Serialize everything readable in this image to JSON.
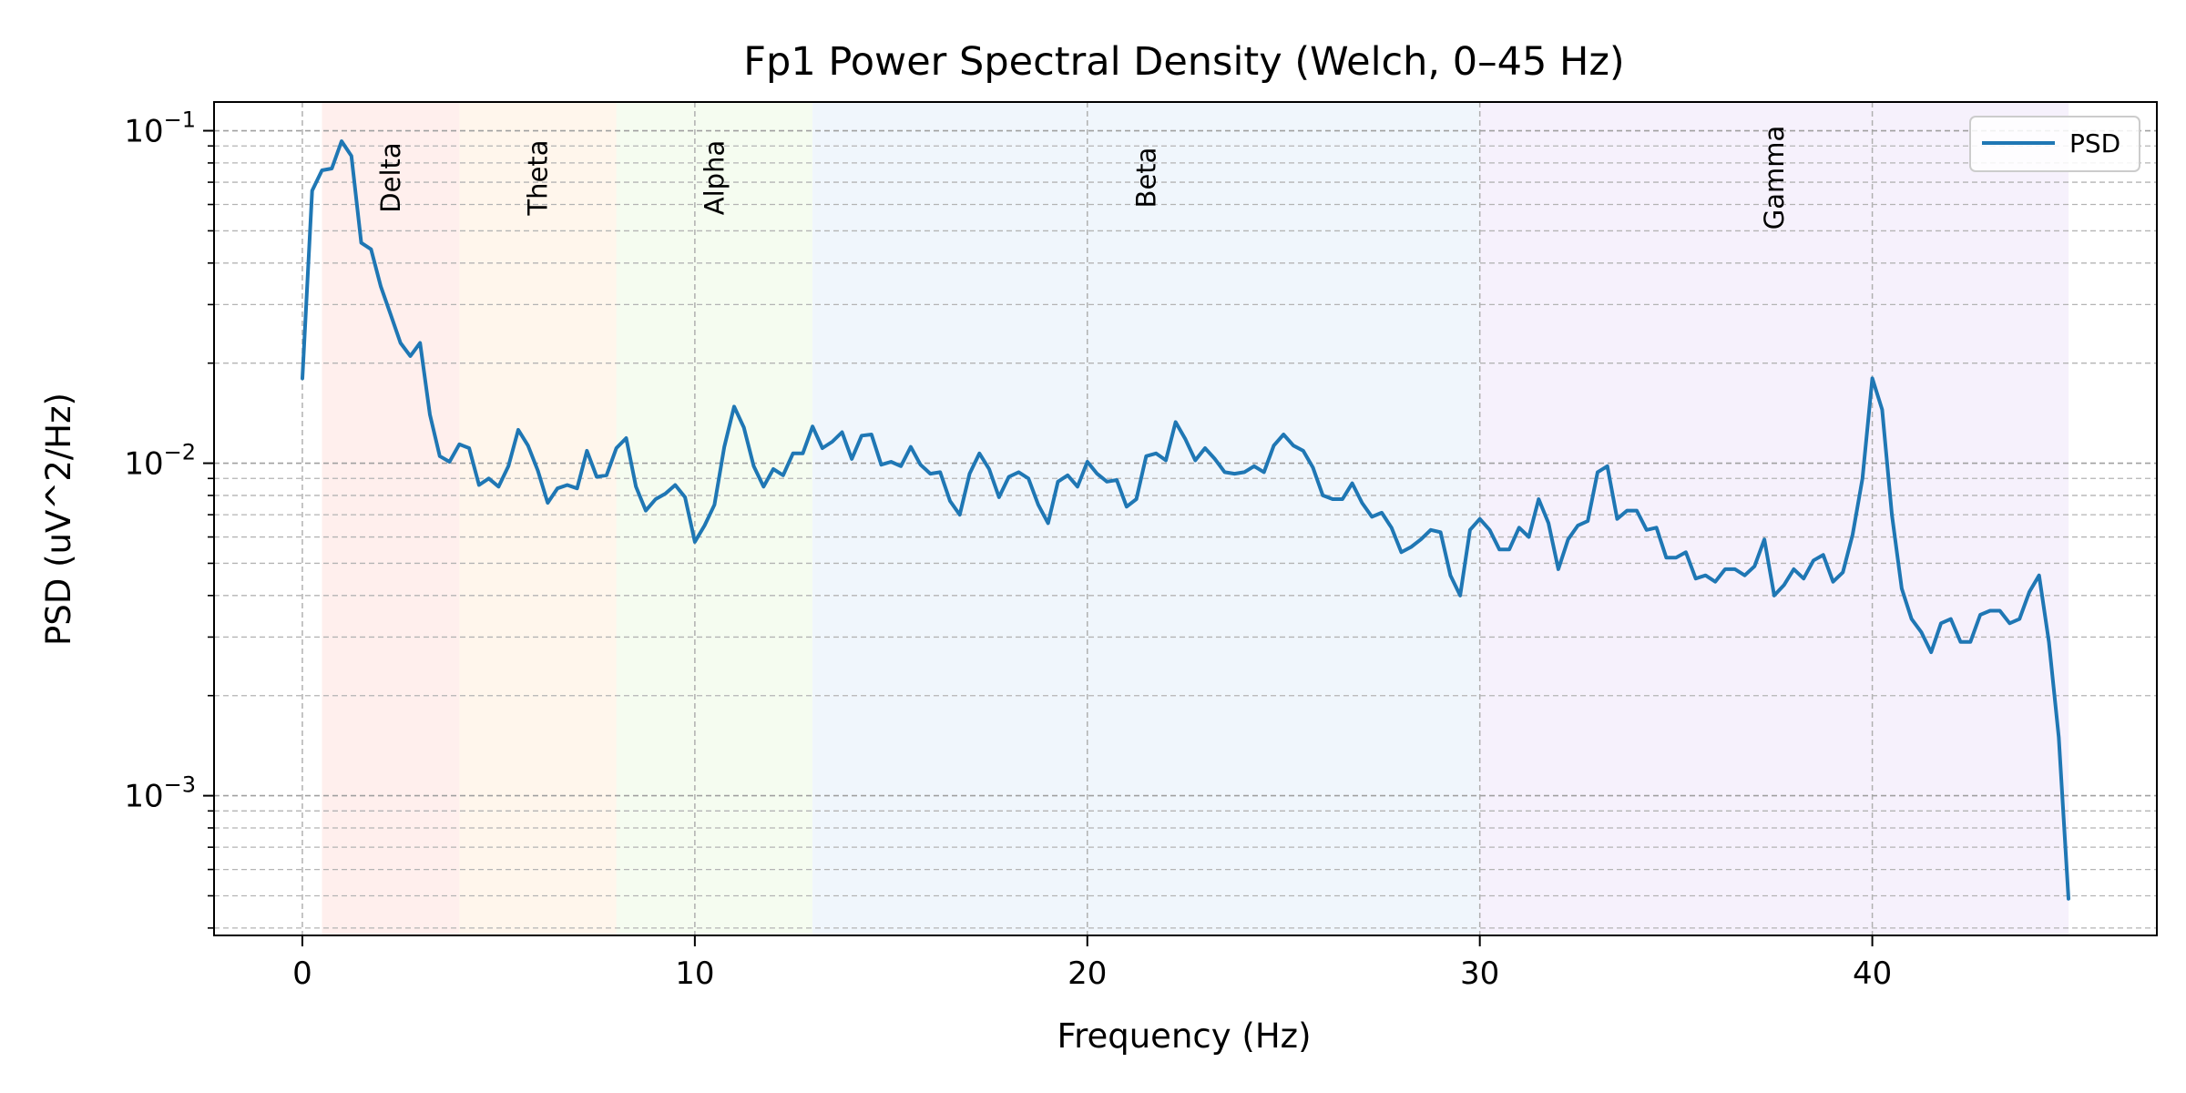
{
  "chart_data": {
    "type": "line",
    "title": "Fp1 Power Spectral Density (Welch, 0–45 Hz)",
    "xlabel": "Frequency (Hz)",
    "ylabel": "PSD (uV^2/Hz)",
    "xlim": [
      -2.25,
      47.25
    ],
    "ylim": [
      0.00038,
      0.122
    ],
    "y_scale": "log",
    "grid": "both-dashed",
    "legend_position": "upper right",
    "x_ticks": [
      {
        "value": 0,
        "label": "0"
      },
      {
        "value": 10,
        "label": "10"
      },
      {
        "value": 20,
        "label": "20"
      },
      {
        "value": 30,
        "label": "30"
      },
      {
        "value": 40,
        "label": "40"
      }
    ],
    "y_ticks": [
      {
        "value": 0.001,
        "base": "10",
        "exp": "−3"
      },
      {
        "value": 0.01,
        "base": "10",
        "exp": "−2"
      },
      {
        "value": 0.1,
        "base": "10",
        "exp": "−1"
      }
    ],
    "bands": [
      {
        "name": "Delta",
        "from": 0.5,
        "to": 4,
        "color": "#ffe4e1"
      },
      {
        "name": "Theta",
        "from": 4,
        "to": 8,
        "color": "#fff0e0"
      },
      {
        "name": "Alpha",
        "from": 8,
        "to": 13,
        "color": "#eefae6"
      },
      {
        "name": "Beta",
        "from": 13,
        "to": 30,
        "color": "#e6f0fa"
      },
      {
        "name": "Gamma",
        "from": 30,
        "to": 45,
        "color": "#f0e8fa"
      }
    ],
    "series": [
      {
        "name": "PSD",
        "color": "#1f77b4",
        "x": [
          0.0,
          0.25,
          0.5,
          0.75,
          1.0,
          1.25,
          1.5,
          1.75,
          2.0,
          2.25,
          2.5,
          2.75,
          3.0,
          3.25,
          3.5,
          3.75,
          4.0,
          4.25,
          4.5,
          4.75,
          5.0,
          5.25,
          5.5,
          5.75,
          6.0,
          6.25,
          6.5,
          6.75,
          7.0,
          7.25,
          7.5,
          7.75,
          8.0,
          8.25,
          8.5,
          8.75,
          9.0,
          9.25,
          9.5,
          9.75,
          10.0,
          10.25,
          10.5,
          10.75,
          11.0,
          11.25,
          11.5,
          11.75,
          12.0,
          12.25,
          12.5,
          12.75,
          13.0,
          13.25,
          13.5,
          13.75,
          14.0,
          14.25,
          14.5,
          14.75,
          15.0,
          15.25,
          15.5,
          15.75,
          16.0,
          16.25,
          16.5,
          16.75,
          17.0,
          17.25,
          17.5,
          17.75,
          18.0,
          18.25,
          18.5,
          18.75,
          19.0,
          19.25,
          19.5,
          19.75,
          20.0,
          20.25,
          20.5,
          20.75,
          21.0,
          21.25,
          21.5,
          21.75,
          22.0,
          22.25,
          22.5,
          22.75,
          23.0,
          23.25,
          23.5,
          23.75,
          24.0,
          24.25,
          24.5,
          24.75,
          25.0,
          25.25,
          25.5,
          25.75,
          26.0,
          26.25,
          26.5,
          26.75,
          27.0,
          27.25,
          27.5,
          27.75,
          28.0,
          28.25,
          28.5,
          28.75,
          29.0,
          29.25,
          29.5,
          29.75,
          30.0,
          30.25,
          30.5,
          30.75,
          31.0,
          31.25,
          31.5,
          31.75,
          32.0,
          32.25,
          32.5,
          32.75,
          33.0,
          33.25,
          33.5,
          33.75,
          34.0,
          34.25,
          34.5,
          34.75,
          35.0,
          35.25,
          35.5,
          35.75,
          36.0,
          36.25,
          36.5,
          36.75,
          37.0,
          37.25,
          37.5,
          37.75,
          38.0,
          38.25,
          38.5,
          38.75,
          39.0,
          39.25,
          39.5,
          39.75,
          40.0,
          40.25,
          40.5,
          40.75,
          41.0,
          41.25,
          41.5,
          41.75,
          42.0,
          42.25,
          42.5,
          42.75,
          43.0,
          43.25,
          43.5,
          43.75,
          44.0,
          44.25,
          44.5,
          44.75,
          45.0
        ],
        "values": [
          0.018,
          0.066,
          0.076,
          0.077,
          0.093,
          0.084,
          0.046,
          0.044,
          0.034,
          0.028,
          0.023,
          0.021,
          0.023,
          0.014,
          0.0105,
          0.0101,
          0.0114,
          0.0111,
          0.0086,
          0.009,
          0.0085,
          0.0098,
          0.0126,
          0.0113,
          0.0095,
          0.0076,
          0.0084,
          0.0086,
          0.0084,
          0.0109,
          0.0091,
          0.0092,
          0.0111,
          0.0119,
          0.0085,
          0.0072,
          0.0078,
          0.0081,
          0.0086,
          0.0079,
          0.0058,
          0.0065,
          0.0075,
          0.0112,
          0.0148,
          0.0128,
          0.0098,
          0.0085,
          0.0096,
          0.0092,
          0.0107,
          0.0107,
          0.0129,
          0.0111,
          0.0116,
          0.0124,
          0.0103,
          0.0121,
          0.0122,
          0.0099,
          0.0101,
          0.0098,
          0.0112,
          0.0099,
          0.0093,
          0.0094,
          0.0077,
          0.007,
          0.0093,
          0.0107,
          0.0096,
          0.0079,
          0.0091,
          0.0094,
          0.009,
          0.0075,
          0.0066,
          0.0088,
          0.0092,
          0.0085,
          0.0101,
          0.0093,
          0.0088,
          0.0089,
          0.0074,
          0.0078,
          0.0105,
          0.0107,
          0.0102,
          0.0133,
          0.0118,
          0.0102,
          0.0111,
          0.0103,
          0.0094,
          0.0093,
          0.0094,
          0.0098,
          0.0094,
          0.0113,
          0.0122,
          0.0113,
          0.0109,
          0.0097,
          0.008,
          0.0078,
          0.0078,
          0.0087,
          0.0076,
          0.0069,
          0.0071,
          0.0064,
          0.0054,
          0.0056,
          0.0059,
          0.0063,
          0.0062,
          0.0046,
          0.004,
          0.0063,
          0.0068,
          0.0063,
          0.0055,
          0.0055,
          0.0064,
          0.006,
          0.0078,
          0.0066,
          0.0048,
          0.0059,
          0.0065,
          0.0067,
          0.0094,
          0.0098,
          0.0068,
          0.0072,
          0.0072,
          0.0063,
          0.0064,
          0.0052,
          0.0052,
          0.0054,
          0.0045,
          0.0046,
          0.0044,
          0.0048,
          0.0048,
          0.0046,
          0.0049,
          0.0059,
          0.004,
          0.0043,
          0.0048,
          0.0045,
          0.0051,
          0.0053,
          0.0044,
          0.0047,
          0.0061,
          0.009,
          0.018,
          0.0145,
          0.007,
          0.0042,
          0.0034,
          0.0031,
          0.0027,
          0.0033,
          0.0034,
          0.0029,
          0.0029,
          0.0035,
          0.0036,
          0.0036,
          0.0033,
          0.0034,
          0.0041,
          0.0046,
          0.0029,
          0.0015,
          0.00049
        ]
      }
    ]
  }
}
